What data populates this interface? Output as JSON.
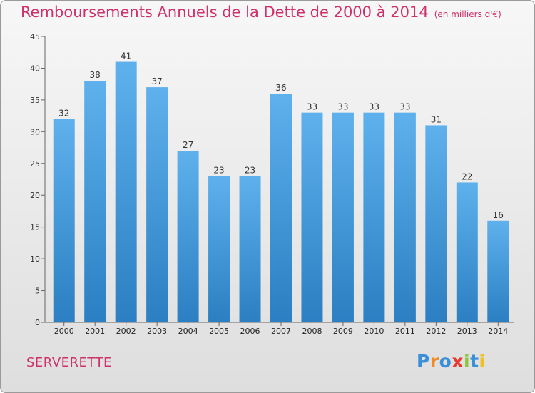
{
  "chart_data": {
    "type": "bar",
    "title": "Remboursements Annuels de la Dette de 2000 à 2014",
    "unit_note": "(en milliers d'€)",
    "categories": [
      "2000",
      "2001",
      "2002",
      "2003",
      "2004",
      "2005",
      "2006",
      "2007",
      "2008",
      "2009",
      "2010",
      "2011",
      "2012",
      "2013",
      "2014"
    ],
    "values": [
      32,
      38,
      41,
      37,
      27,
      23,
      23,
      36,
      33,
      33,
      33,
      33,
      31,
      22,
      16
    ],
    "ylim": [
      0,
      45
    ],
    "yticks": [
      0,
      5,
      10,
      15,
      20,
      25,
      30,
      35,
      40,
      45
    ],
    "xlabel": "",
    "ylabel": "",
    "grid": false,
    "bar_color": "#4a9fde"
  },
  "footer": {
    "commune": "SERVERETTE",
    "logo_letters": [
      {
        "char": "P",
        "color": "#3a8fd8"
      },
      {
        "char": "r",
        "color": "#f08a24"
      },
      {
        "char": "o",
        "color": "#3a8fd8"
      },
      {
        "char": "x",
        "color": "#e8392f"
      },
      {
        "char": "i",
        "color": "#8cc63f"
      },
      {
        "char": "t",
        "color": "#3a8fd8"
      },
      {
        "char": "i",
        "color": "#f0c020"
      }
    ]
  }
}
